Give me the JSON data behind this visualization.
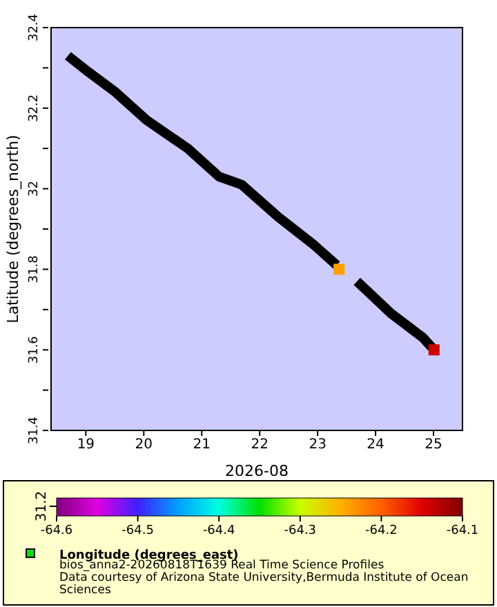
{
  "chart_data": {
    "type": "line",
    "xlabel": "2026-08",
    "ylabel": "Latitude (degrees_north)",
    "clabel": "Longitude (degrees_east)",
    "x": [
      "2026-08-18T16:34",
      "2026-08-19T01:00",
      "2026-08-19T12:14",
      "2026-08-20T01:12",
      "2026-08-20T18:14",
      "2026-08-21T07:12",
      "2026-08-21T16:34",
      "2026-08-22T07:41",
      "2026-08-22T22:34",
      "2026-08-23T07:55",
      "2026-08-23T12:00",
      "2026-08-23T16:19",
      "2026-08-24T06:29",
      "2026-08-24T19:41",
      "2026-08-25T00:14"
    ],
    "series": [
      {
        "color": "#000000",
        "values": [
          32.33,
          32.29,
          32.24,
          32.17,
          32.1,
          32.03,
          32.01,
          31.93,
          31.86,
          31.81,
          null,
          31.77,
          31.69,
          31.63,
          31.6
        ]
      },
      {
        "type": "scatter",
        "marker": "square",
        "x": [
          "2026-08-23T08:53",
          "2026-08-25T00:14"
        ],
        "values": [
          31.8,
          31.6
        ],
        "cvalues": [
          -64.24,
          -64.14
        ],
        "colors": [
          "#ffa000",
          "#cd0000"
        ]
      }
    ],
    "xlim": [
      "2026-08-18T09:36",
      "2026-08-25T12:00"
    ],
    "xticks": [
      {
        "value": "2026-08-19",
        "label": "19"
      },
      {
        "value": "2026-08-20",
        "label": "20"
      },
      {
        "value": "2026-08-21",
        "label": "21"
      },
      {
        "value": "2026-08-22",
        "label": "22"
      },
      {
        "value": "2026-08-23",
        "label": "23"
      },
      {
        "value": "2026-08-24",
        "label": "24"
      },
      {
        "value": "2026-08-25",
        "label": "25"
      }
    ],
    "ylim": [
      31.4,
      32.4
    ],
    "yticks": [
      31.4,
      {
        "value": 31.5,
        "label": null
      },
      31.6,
      {
        "value": 31.7,
        "label": null
      },
      31.8,
      {
        "value": 31.9,
        "label": null
      },
      32,
      {
        "value": 32.1,
        "label": null
      },
      32.2,
      {
        "value": 32.3,
        "label": null
      },
      32.4
    ],
    "clim": [
      -64.6,
      -64.1
    ],
    "cticks": [
      -64.6,
      -64.5,
      -64.4,
      -64.3,
      -64.2,
      -64.1
    ],
    "annotations": [
      "31.2",
      "bios_anna2-20260818T1639 Real Time Science Profiles",
      "Data courtesy of Arizona State University,Bermuda Institute of Ocean Sciences"
    ]
  }
}
